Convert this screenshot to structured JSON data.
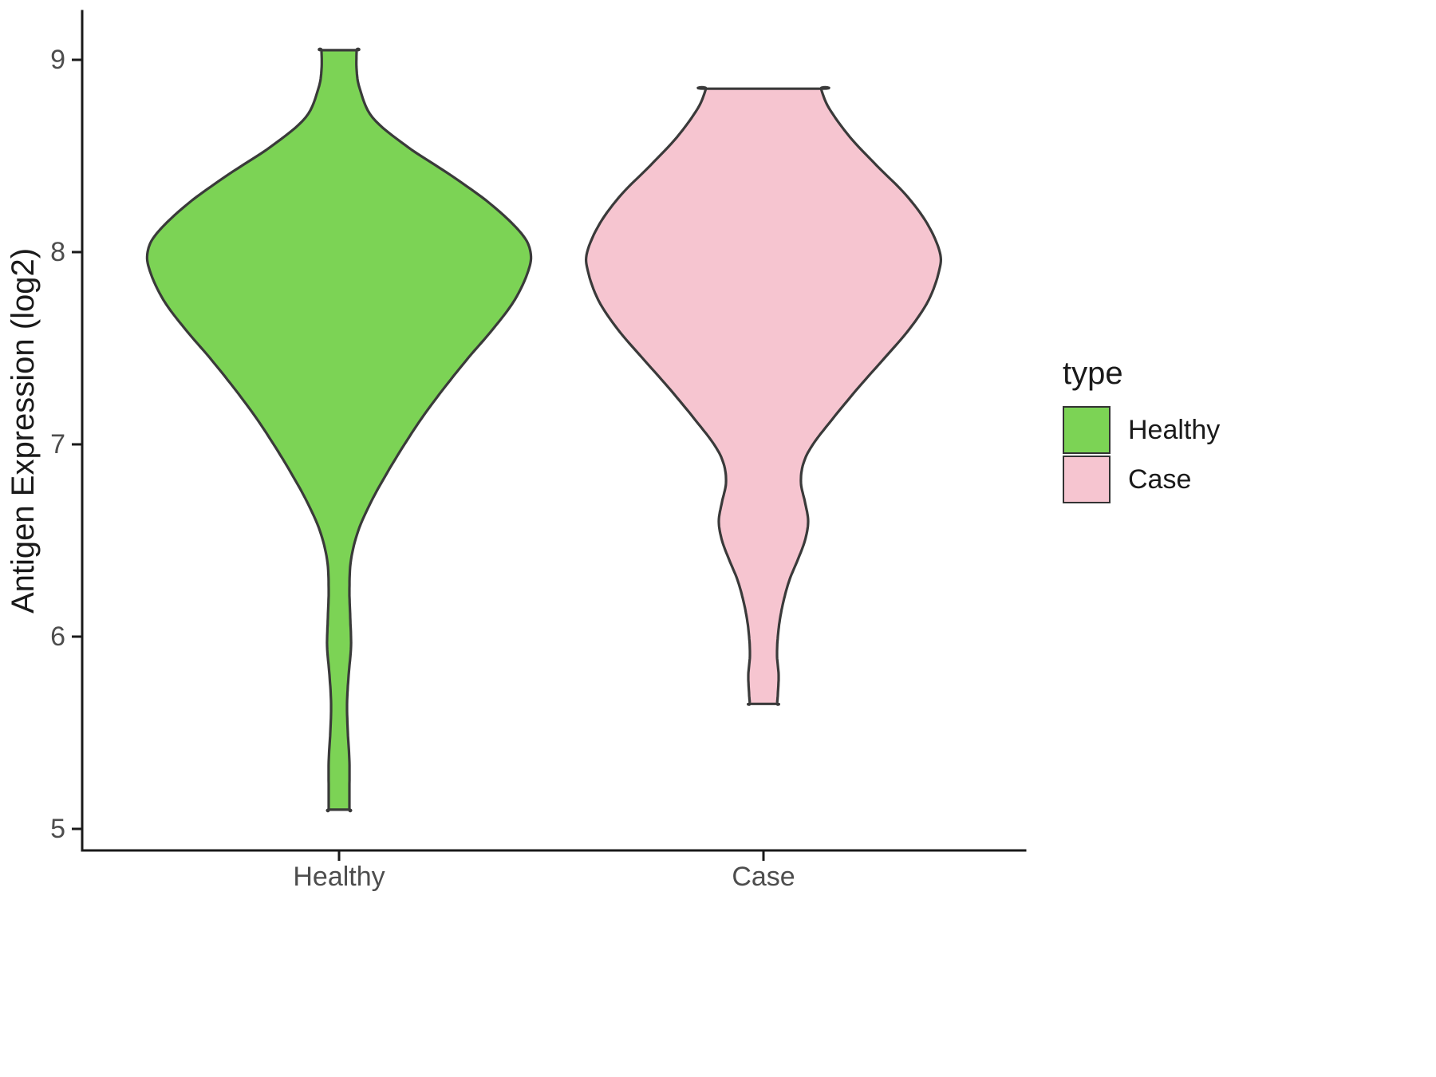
{
  "chart_data": {
    "type": "violin",
    "title": "",
    "xlabel": "",
    "ylabel": "Antigen Expression (log2)",
    "ylim": [
      5,
      9
    ],
    "y_ticks": [
      5,
      6,
      7,
      8,
      9
    ],
    "categories": [
      "Healthy",
      "Case"
    ],
    "grid": false,
    "legend": {
      "title": "type",
      "position": "right",
      "entries": [
        {
          "label": "Healthy",
          "color": "#7CD355"
        },
        {
          "label": "Case",
          "color": "#F6C5D0"
        }
      ]
    },
    "colors": {
      "outline": "#3A3A3A",
      "axis": "#1A1A1A",
      "tick_label": "#4D4D4D",
      "axis_title": "#1A1A1A"
    },
    "series": [
      {
        "name": "Healthy",
        "fill": "#7CD355",
        "profile_note": "pairs of [expression value (log2), half-width of density in px]",
        "profile": [
          [
            9.05,
            22
          ],
          [
            8.95,
            22
          ],
          [
            8.85,
            26
          ],
          [
            8.7,
            42
          ],
          [
            8.55,
            85
          ],
          [
            8.4,
            140
          ],
          [
            8.25,
            190
          ],
          [
            8.1,
            228
          ],
          [
            8.0,
            240
          ],
          [
            7.9,
            237
          ],
          [
            7.75,
            220
          ],
          [
            7.6,
            193
          ],
          [
            7.45,
            162
          ],
          [
            7.3,
            133
          ],
          [
            7.15,
            106
          ],
          [
            7.0,
            82
          ],
          [
            6.85,
            60
          ],
          [
            6.7,
            40
          ],
          [
            6.55,
            24
          ],
          [
            6.4,
            15
          ],
          [
            6.25,
            13
          ],
          [
            6.1,
            14
          ],
          [
            5.95,
            15
          ],
          [
            5.8,
            12
          ],
          [
            5.65,
            10
          ],
          [
            5.5,
            11
          ],
          [
            5.35,
            13
          ],
          [
            5.2,
            13
          ],
          [
            5.1,
            13
          ]
        ]
      },
      {
        "name": "Case",
        "fill": "#F6C5D0",
        "profile_note": "pairs of [expression value (log2), half-width of density in px]",
        "profile": [
          [
            8.85,
            72
          ],
          [
            8.75,
            82
          ],
          [
            8.6,
            108
          ],
          [
            8.45,
            142
          ],
          [
            8.3,
            178
          ],
          [
            8.15,
            205
          ],
          [
            8.0,
            221
          ],
          [
            7.9,
            220
          ],
          [
            7.75,
            207
          ],
          [
            7.6,
            183
          ],
          [
            7.45,
            152
          ],
          [
            7.3,
            120
          ],
          [
            7.15,
            90
          ],
          [
            7.0,
            62
          ],
          [
            6.9,
            50
          ],
          [
            6.8,
            47
          ],
          [
            6.7,
            52
          ],
          [
            6.6,
            56
          ],
          [
            6.5,
            52
          ],
          [
            6.4,
            43
          ],
          [
            6.3,
            33
          ],
          [
            6.2,
            26
          ],
          [
            6.1,
            21
          ],
          [
            6.0,
            18
          ],
          [
            5.9,
            17
          ],
          [
            5.8,
            19
          ],
          [
            5.7,
            18
          ],
          [
            5.65,
            17
          ]
        ]
      }
    ]
  }
}
